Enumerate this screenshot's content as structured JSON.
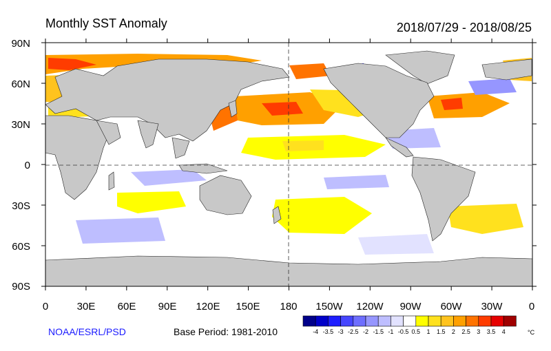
{
  "title": "Monthly SST Anomaly",
  "date_range": "2018/07/29 - 2018/08/25",
  "credit": "NOAA/ESRL/PSD",
  "base_period": "Base Period: 1981-2010",
  "lat_labels": [
    "90N",
    "60N",
    "30N",
    "0",
    "30S",
    "60S",
    "90S"
  ],
  "lon_labels": [
    "0",
    "30E",
    "60E",
    "90E",
    "120E",
    "150E",
    "180",
    "150W",
    "120W",
    "90W",
    "60W",
    "30W",
    "0"
  ],
  "colorbar": {
    "unit": "°C",
    "tick_labels": [
      "-4",
      "-3.5",
      "-3",
      "-2.5",
      "-2",
      "-1.5",
      "-1",
      "-0.5",
      "0.5",
      "1",
      "1.5",
      "2",
      "2.5",
      "3",
      "3.5",
      "4"
    ],
    "colors": [
      "#00008a",
      "#0000c8",
      "#1e1eff",
      "#4646ff",
      "#6e6eff",
      "#9696ff",
      "#bebeff",
      "#e2e2ff",
      "#ffffff",
      "#ffff00",
      "#ffe11e",
      "#ffc31e",
      "#ffa000",
      "#ff7300",
      "#ff3c00",
      "#e60000",
      "#a00000"
    ]
  }
}
